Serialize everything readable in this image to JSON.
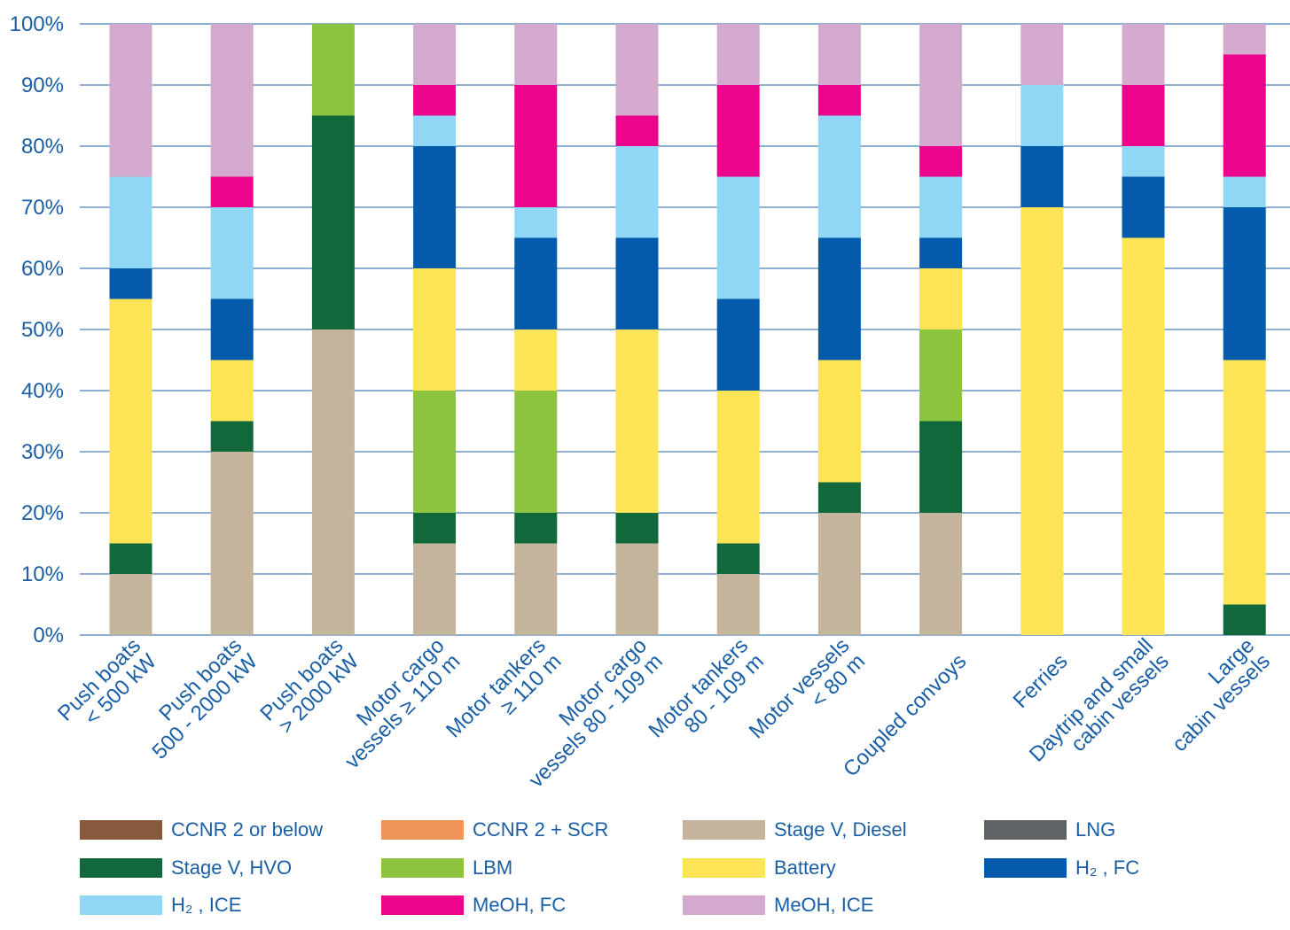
{
  "chart_data": {
    "type": "bar",
    "stacked": true,
    "ylim": [
      0,
      100
    ],
    "yticks": [
      "0%",
      "10%",
      "20%",
      "30%",
      "40%",
      "50%",
      "60%",
      "70%",
      "80%",
      "90%",
      "100%"
    ],
    "grid": true,
    "legend_position": "bottom",
    "categories": [
      [
        "Push boats",
        "< 500 kW"
      ],
      [
        "Push boats",
        "500 - 2000 kW"
      ],
      [
        "Push boats",
        "> 2000 kW"
      ],
      [
        "Motor cargo",
        "vessels ≥ 110 m"
      ],
      [
        "Motor tankers",
        "≥ 110 m"
      ],
      [
        "Motor cargo",
        "vessels 80 - 109 m"
      ],
      [
        "Motor tankers",
        "80 - 109 m"
      ],
      [
        "Motor vessels",
        "< 80 m"
      ],
      [
        "Coupled convoys"
      ],
      [
        "Ferries"
      ],
      [
        "Daytrip and small",
        "cabin vessels"
      ],
      [
        "Large",
        "cabin vessels"
      ]
    ],
    "series": [
      {
        "name": "CCNR 2 or below",
        "color": "#875a3c",
        "values": [
          0,
          0,
          0,
          0,
          0,
          0,
          0,
          0,
          0,
          0,
          0,
          0
        ]
      },
      {
        "name": "CCNR 2 + SCR",
        "color": "#f0955a",
        "values": [
          0,
          0,
          0,
          0,
          0,
          0,
          0,
          0,
          0,
          0,
          0,
          0
        ]
      },
      {
        "name": "Stage V, Diesel",
        "color": "#c4b49b",
        "values": [
          10,
          30,
          50,
          15,
          15,
          15,
          10,
          20,
          20,
          0,
          0,
          0
        ]
      },
      {
        "name": "LNG",
        "color": "#5e6366",
        "values": [
          0,
          0,
          0,
          0,
          0,
          0,
          0,
          0,
          0,
          0,
          0,
          0
        ]
      },
      {
        "name": "Stage V, HVO",
        "color": "#10683b",
        "values": [
          5,
          5,
          35,
          5,
          5,
          5,
          5,
          5,
          15,
          0,
          0,
          5
        ]
      },
      {
        "name": "LBM",
        "color": "#8cc43f",
        "values": [
          0,
          0,
          15,
          20,
          20,
          0,
          0,
          0,
          15,
          0,
          0,
          0
        ]
      },
      {
        "name": "Battery",
        "color": "#fde456",
        "values": [
          40,
          10,
          0,
          20,
          10,
          30,
          25,
          20,
          10,
          70,
          65,
          40
        ]
      },
      {
        "name": "H₂ , FC",
        "color": "#045aab",
        "values": [
          5,
          10,
          0,
          20,
          15,
          15,
          15,
          20,
          5,
          10,
          10,
          25
        ]
      },
      {
        "name": "H₂ , ICE",
        "color": "#8fd7f4",
        "values": [
          15,
          15,
          0,
          5,
          5,
          15,
          20,
          20,
          10,
          10,
          5,
          5
        ]
      },
      {
        "name": "MeOH, FC",
        "color": "#ec048c",
        "values": [
          0,
          5,
          0,
          5,
          20,
          5,
          15,
          5,
          5,
          0,
          10,
          20
        ]
      },
      {
        "name": "MeOH, ICE",
        "color": "#d3a9cd",
        "values": [
          25,
          25,
          0,
          10,
          10,
          15,
          10,
          10,
          20,
          10,
          10,
          5
        ]
      }
    ]
  },
  "legend_order": [
    "CCNR 2 or below",
    "CCNR 2 + SCR",
    "Stage V, Diesel",
    "LNG",
    "Stage V, HVO",
    "LBM",
    "Battery",
    "H₂ , FC",
    "H₂ , ICE",
    "MeOH, FC",
    "MeOH, ICE"
  ]
}
